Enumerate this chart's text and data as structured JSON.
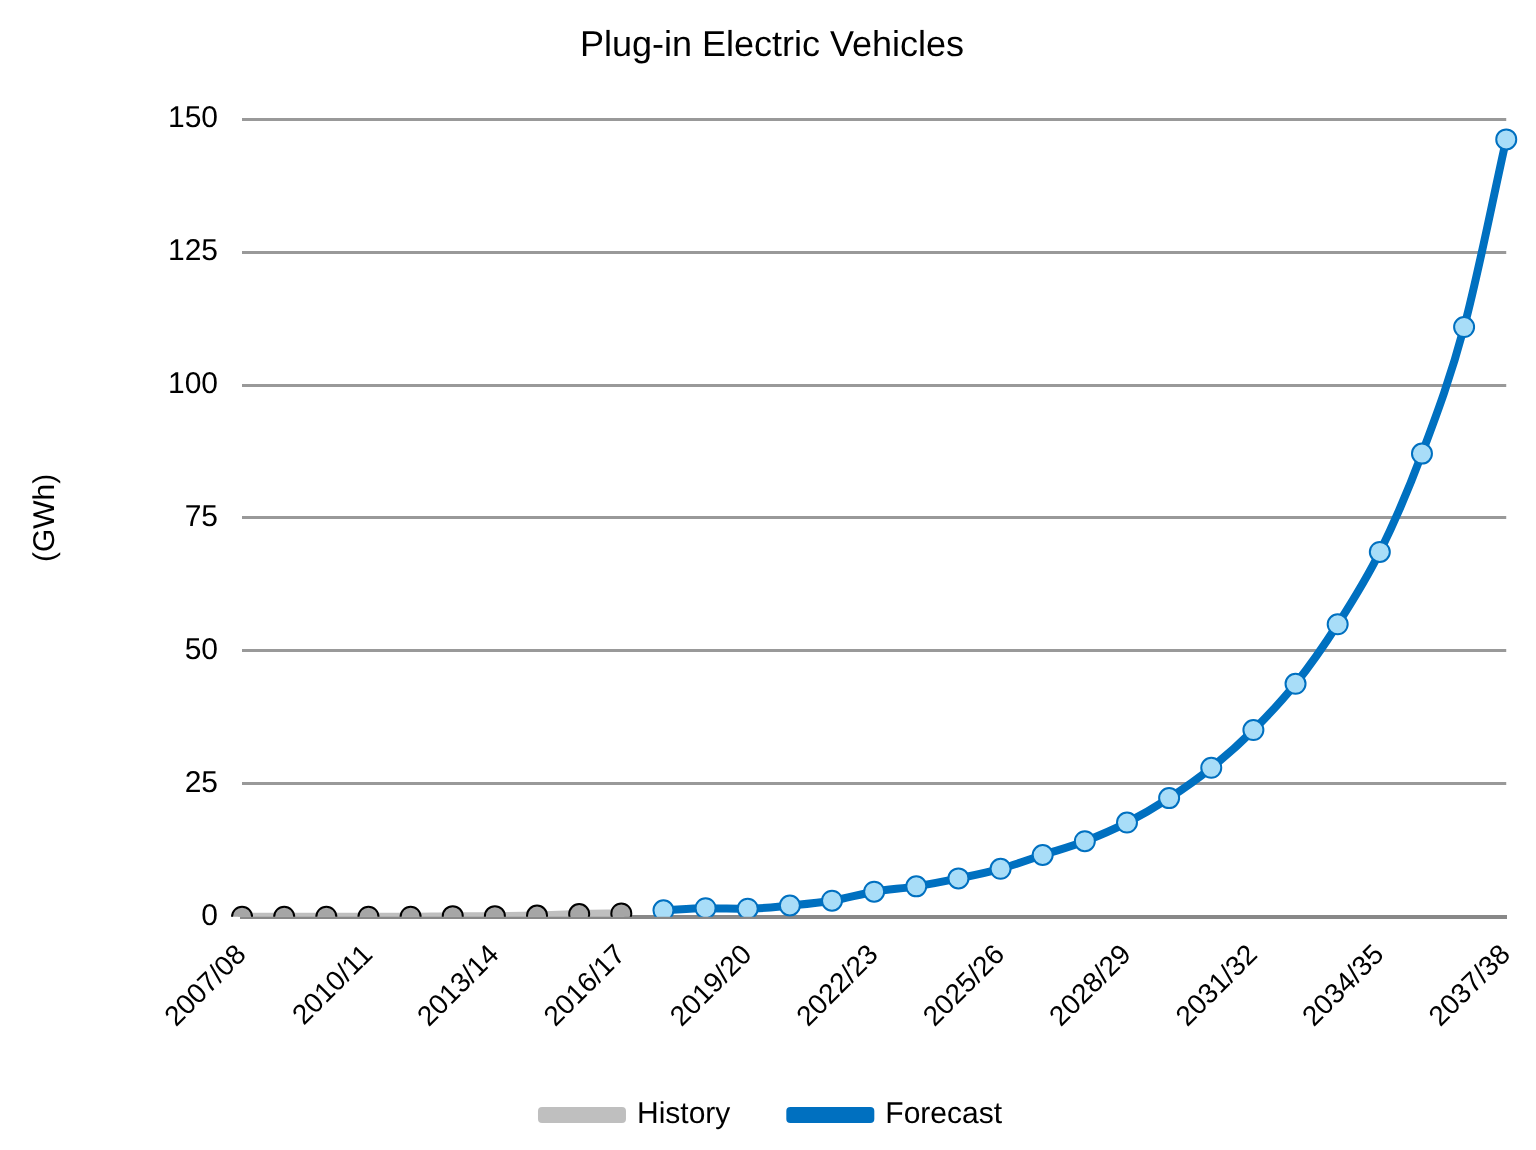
{
  "chart_data": {
    "type": "line",
    "title": "Plug-in Electric Vehicles",
    "ylabel": "(GWh)",
    "categories": [
      "2007/08",
      null,
      null,
      "2010/11",
      null,
      null,
      "2013/14",
      null,
      null,
      "2016/17",
      null,
      null,
      "2019/20",
      null,
      null,
      "2022/23",
      null,
      null,
      "2025/26",
      null,
      null,
      "2028/29",
      null,
      null,
      "2031/32",
      null,
      null,
      "2034/35",
      null,
      null,
      "2037/38"
    ],
    "series": [
      {
        "name": "History",
        "color": "#bfbfbf",
        "values": [
          0.0,
          0.0,
          0.0,
          0.0,
          0.0,
          0.1,
          0.1,
          0.2,
          0.5,
          0.6,
          null,
          null,
          null,
          null,
          null,
          null,
          null,
          null,
          null,
          null,
          null,
          null,
          null,
          null,
          null,
          null,
          null,
          null,
          null,
          null,
          null
        ]
      },
      {
        "name": "Forecast",
        "color": "#0070c0",
        "values": [
          null,
          null,
          null,
          null,
          null,
          null,
          null,
          null,
          null,
          null,
          1.2,
          1.6,
          1.5,
          2.1,
          3.0,
          4.7,
          5.7,
          7.2,
          9.0,
          11.6,
          14.2,
          17.7,
          22.3,
          28.0,
          35.1,
          43.8,
          55.0,
          68.6,
          87.1,
          110.9,
          146.2
        ]
      }
    ],
    "ylim": [
      0,
      150
    ],
    "yticks": [
      0,
      25,
      50,
      75,
      100,
      125,
      150
    ],
    "grid": "y",
    "legend": "bottom",
    "marker": "circle",
    "line_style": "solid"
  }
}
